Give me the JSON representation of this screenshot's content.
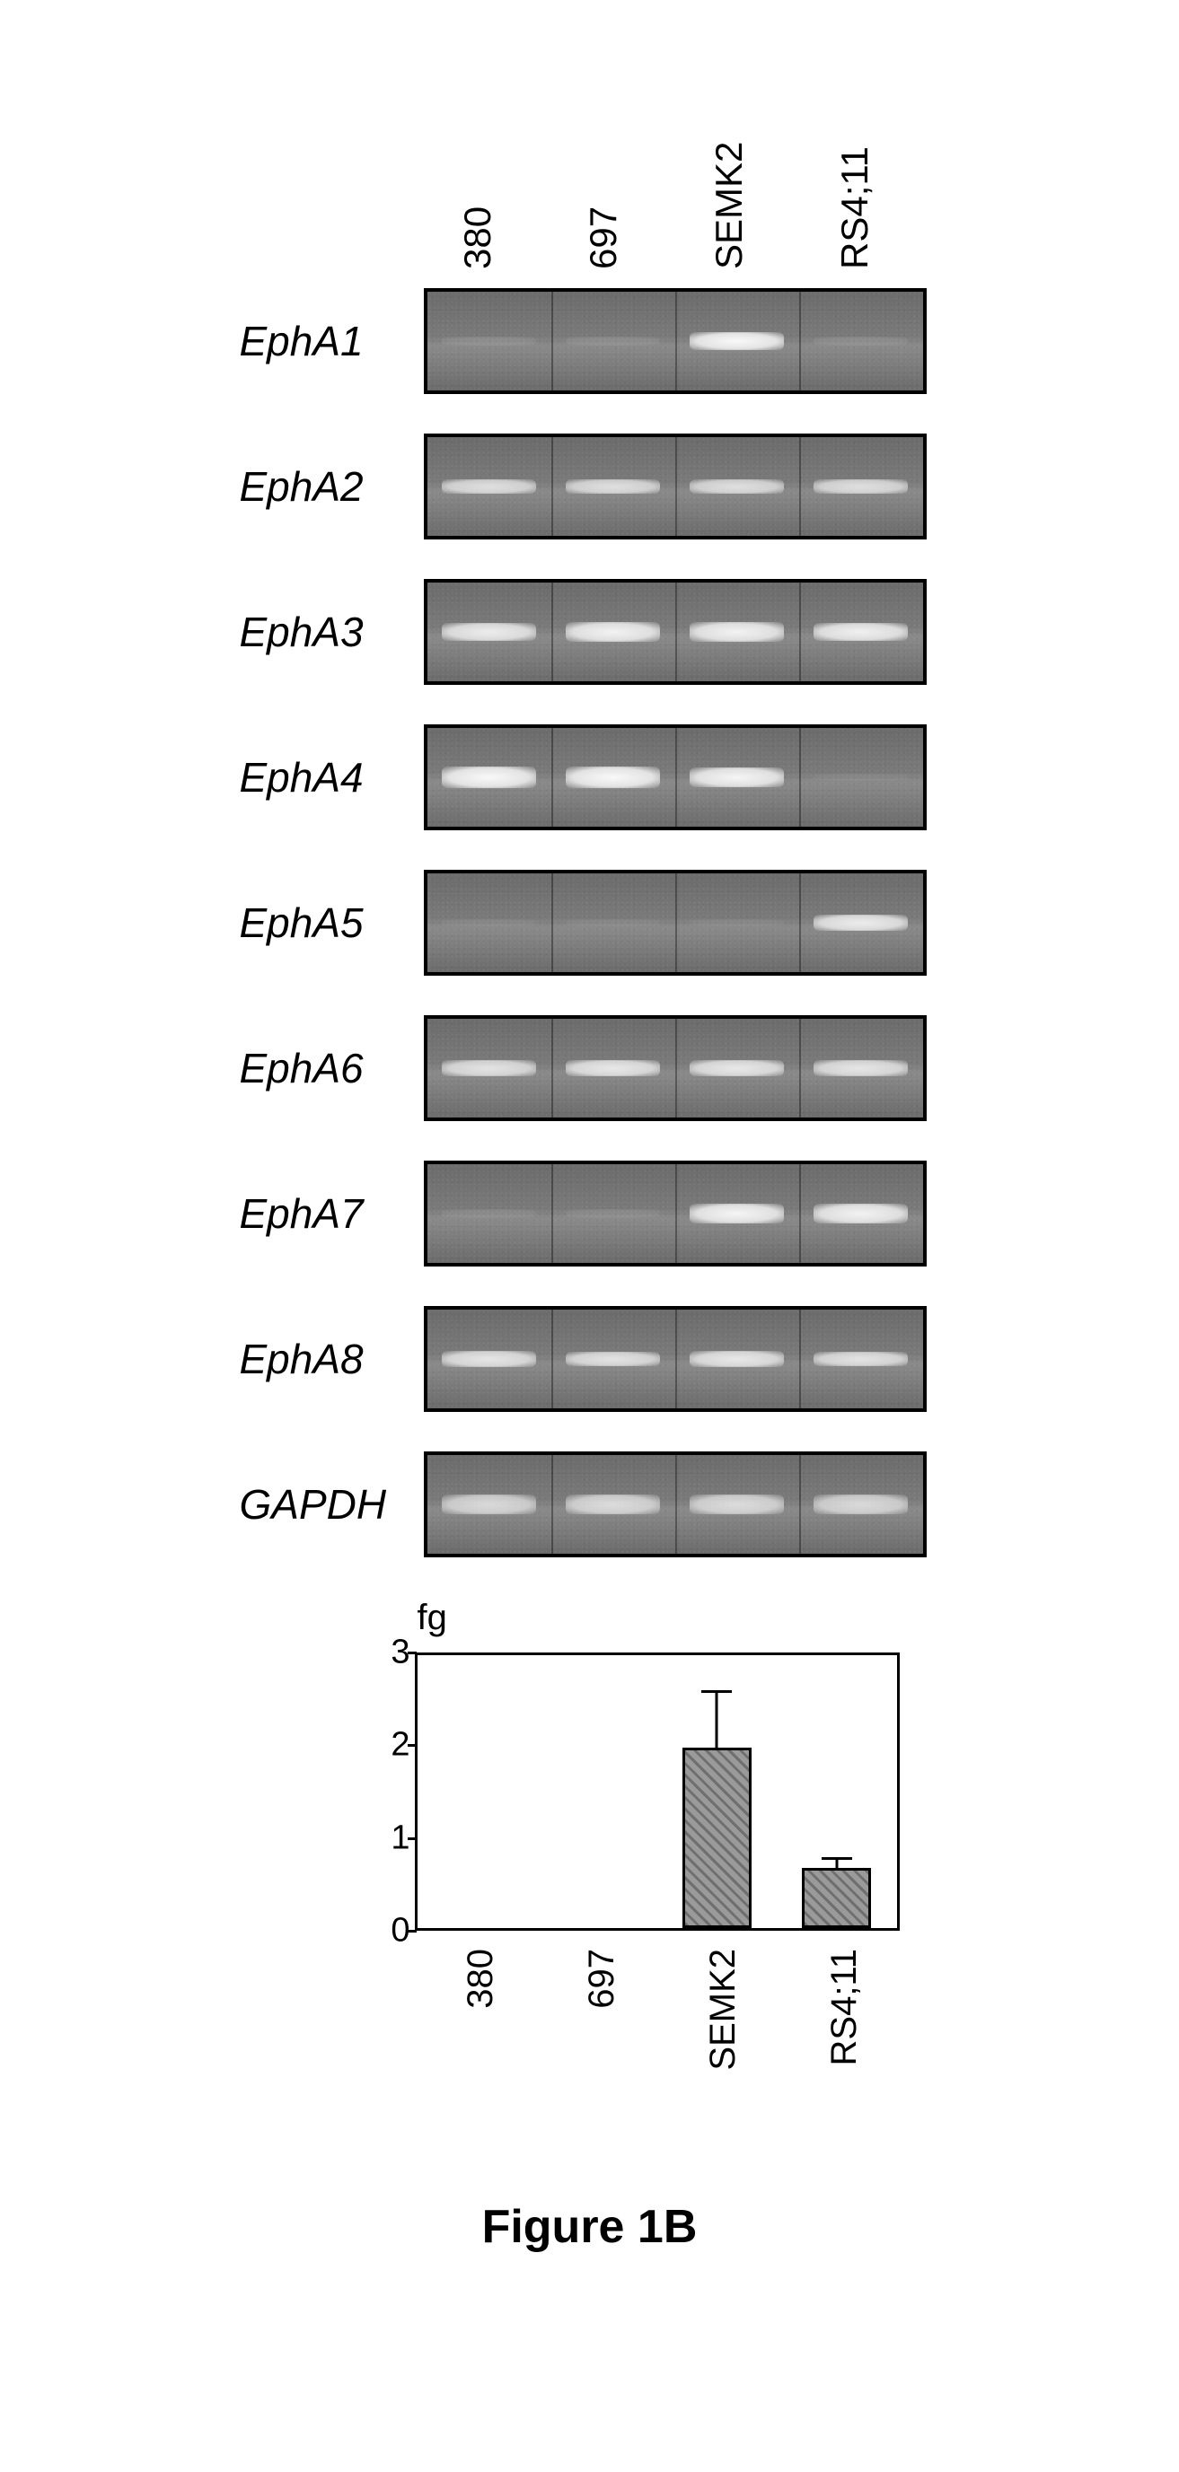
{
  "cell_lines": [
    "380",
    "697",
    "SEMK2",
    "RS4;11"
  ],
  "gel": {
    "background_color": "#787878",
    "border_color": "#000000",
    "rows": [
      {
        "gene": "EphA1",
        "bands": [
          {
            "intensity": 0.1,
            "thickness": 10
          },
          {
            "intensity": 0.1,
            "thickness": 10
          },
          {
            "intensity": 0.95,
            "thickness": 20
          },
          {
            "intensity": 0.1,
            "thickness": 10
          }
        ]
      },
      {
        "gene": "EphA2",
        "bands": [
          {
            "intensity": 0.75,
            "thickness": 16
          },
          {
            "intensity": 0.75,
            "thickness": 16
          },
          {
            "intensity": 0.75,
            "thickness": 16
          },
          {
            "intensity": 0.75,
            "thickness": 16
          }
        ]
      },
      {
        "gene": "EphA3",
        "bands": [
          {
            "intensity": 0.85,
            "thickness": 20
          },
          {
            "intensity": 0.9,
            "thickness": 22
          },
          {
            "intensity": 0.9,
            "thickness": 22
          },
          {
            "intensity": 0.88,
            "thickness": 20
          }
        ]
      },
      {
        "gene": "EphA4",
        "bands": [
          {
            "intensity": 0.95,
            "thickness": 24
          },
          {
            "intensity": 0.95,
            "thickness": 24
          },
          {
            "intensity": 0.92,
            "thickness": 22
          },
          {
            "intensity": 0.05,
            "thickness": 8
          }
        ]
      },
      {
        "gene": "EphA5",
        "bands": [
          {
            "intensity": 0.05,
            "thickness": 8
          },
          {
            "intensity": 0.05,
            "thickness": 8
          },
          {
            "intensity": 0.05,
            "thickness": 8
          },
          {
            "intensity": 0.85,
            "thickness": 18
          }
        ]
      },
      {
        "gene": "EphA6",
        "bands": [
          {
            "intensity": 0.78,
            "thickness": 18
          },
          {
            "intensity": 0.82,
            "thickness": 18
          },
          {
            "intensity": 0.82,
            "thickness": 18
          },
          {
            "intensity": 0.8,
            "thickness": 18
          }
        ]
      },
      {
        "gene": "EphA7",
        "bands": [
          {
            "intensity": 0.08,
            "thickness": 10
          },
          {
            "intensity": 0.08,
            "thickness": 10
          },
          {
            "intensity": 0.92,
            "thickness": 22
          },
          {
            "intensity": 0.9,
            "thickness": 22
          }
        ]
      },
      {
        "gene": "EphA8",
        "bands": [
          {
            "intensity": 0.8,
            "thickness": 18
          },
          {
            "intensity": 0.78,
            "thickness": 16
          },
          {
            "intensity": 0.82,
            "thickness": 18
          },
          {
            "intensity": 0.78,
            "thickness": 16
          }
        ]
      },
      {
        "gene": "GAPDH",
        "bands": [
          {
            "intensity": 0.7,
            "thickness": 22
          },
          {
            "intensity": 0.72,
            "thickness": 22
          },
          {
            "intensity": 0.72,
            "thickness": 22
          },
          {
            "intensity": 0.7,
            "thickness": 22
          }
        ]
      }
    ]
  },
  "chart": {
    "type": "bar",
    "y_unit": "fg",
    "ylim": [
      0,
      3
    ],
    "yticks": [
      0,
      1,
      2,
      3
    ],
    "categories": [
      "380",
      "697",
      "SEMK2",
      "RS4;11"
    ],
    "values": [
      0,
      0,
      1.95,
      0.65
    ],
    "errors": [
      0,
      0,
      0.6,
      0.1
    ],
    "bar_fill": "#9a9a9a",
    "bar_hatch": "diag",
    "border_color": "#000000",
    "error_cap_width": 34
  },
  "caption": "Figure 1B"
}
